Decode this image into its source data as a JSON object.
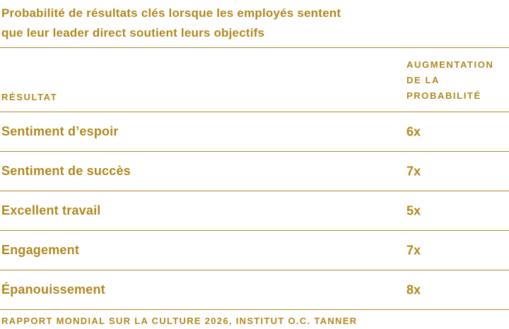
{
  "title_lines": [
    "Probabilité de résultats clés lorsque les employés sentent",
    "que leur leader direct soutient leurs objectifs"
  ],
  "table": {
    "result_header": "RÉSULTAT",
    "value_header_lines": [
      "AUGMENTATION",
      "DE LA",
      "PROBABILITÉ"
    ],
    "rows": [
      {
        "label": "Sentiment d’espoir",
        "value": "6x"
      },
      {
        "label": "Sentiment de succès",
        "value": "7x"
      },
      {
        "label": "Excellent travail",
        "value": "5x"
      },
      {
        "label": "Engagement",
        "value": "7x"
      },
      {
        "label": "Épanouissement",
        "value": "8x"
      }
    ]
  },
  "source": "RAPPORT MONDIAL SUR LA CULTURE 2026, INSTITUT O.C. TANNER",
  "colors": {
    "gold": "#b2881e",
    "background": "#ffffff"
  },
  "chart_data": {
    "type": "table",
    "title": "Probabilité de résultats clés lorsque les employés sentent que leur leader direct soutient leurs objectifs",
    "columns": [
      "RÉSULTAT",
      "AUGMENTATION DE LA PROBABILITÉ"
    ],
    "categories": [
      "Sentiment d’espoir",
      "Sentiment de succès",
      "Excellent travail",
      "Engagement",
      "Épanouissement"
    ],
    "values": [
      "6x",
      "7x",
      "5x",
      "7x",
      "8x"
    ],
    "values_numeric": [
      6,
      7,
      5,
      7,
      8
    ],
    "source": "RAPPORT MONDIAL SUR LA CULTURE 2026, INSTITUT O.C. TANNER",
    "layout": {
      "grid": "horizontal-rules",
      "legend": "none"
    }
  }
}
